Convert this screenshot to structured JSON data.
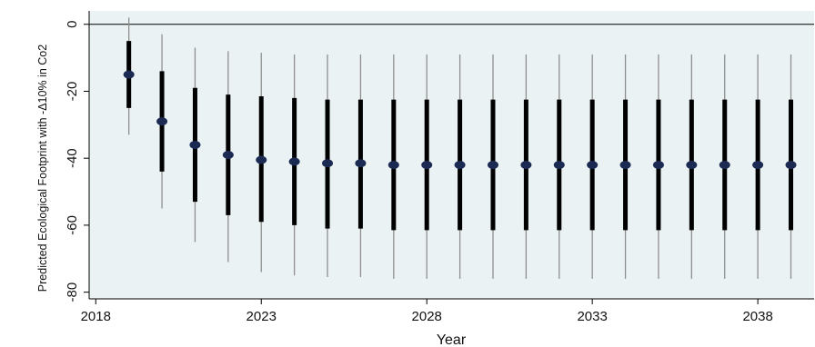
{
  "chart_data": {
    "type": "scatter",
    "title": "",
    "xlabel": "Year",
    "ylabel": "Predicted Ecological Footprint with -Δ10% in Co2",
    "xlim": [
      2017.8,
      2039.7
    ],
    "ylim": [
      -82,
      4
    ],
    "x_ticks": [
      2018,
      2023,
      2028,
      2033,
      2038
    ],
    "y_ticks": [
      0,
      -20,
      -40,
      -60,
      -80
    ],
    "reference_line": 0,
    "grid": false,
    "legend": "none",
    "colors": {
      "background": "#ffffff",
      "plot_background": "#eaf2f3",
      "thin_interval": "#8f8f8f",
      "thick_interval": "#000000",
      "point": "#1a2a52",
      "reference": "#000000"
    },
    "x": [
      2019,
      2020,
      2021,
      2022,
      2023,
      2024,
      2025,
      2026,
      2027,
      2028,
      2029,
      2030,
      2031,
      2032,
      2033,
      2034,
      2035,
      2036,
      2037,
      2038,
      2039
    ],
    "estimate": [
      -15,
      -29,
      -36,
      -39,
      -40.5,
      -41,
      -41.5,
      -41.5,
      -42,
      -42,
      -42,
      -42,
      -42,
      -42,
      -42,
      -42,
      -42,
      -42,
      -42,
      -42,
      -42
    ],
    "inner_low": [
      -25,
      -44,
      -53,
      -57,
      -59,
      -60,
      -61,
      -61,
      -61.5,
      -61.5,
      -61.5,
      -61.5,
      -61.5,
      -61.5,
      -61.5,
      -61.5,
      -61.5,
      -61.5,
      -61.5,
      -61.5,
      -61.5
    ],
    "inner_high": [
      -5,
      -14,
      -19,
      -21,
      -21.5,
      -22,
      -22.5,
      -22.5,
      -22.5,
      -22.5,
      -22.5,
      -22.5,
      -22.5,
      -22.5,
      -22.5,
      -22.5,
      -22.5,
      -22.5,
      -22.5,
      -22.5,
      -22.5
    ],
    "outer_low": [
      -33,
      -55,
      -65,
      -71,
      -74,
      -75,
      -75.5,
      -75.5,
      -76,
      -76,
      -76,
      -76,
      -76,
      -76,
      -76,
      -76,
      -76,
      -76,
      -76,
      -76,
      -76
    ],
    "outer_high": [
      2,
      -3,
      -7,
      -8,
      -8.5,
      -9,
      -9,
      -9,
      -9,
      -9,
      -9,
      -9,
      -9,
      -9,
      -9,
      -9,
      -9,
      -9,
      -9,
      -9,
      -9
    ]
  }
}
